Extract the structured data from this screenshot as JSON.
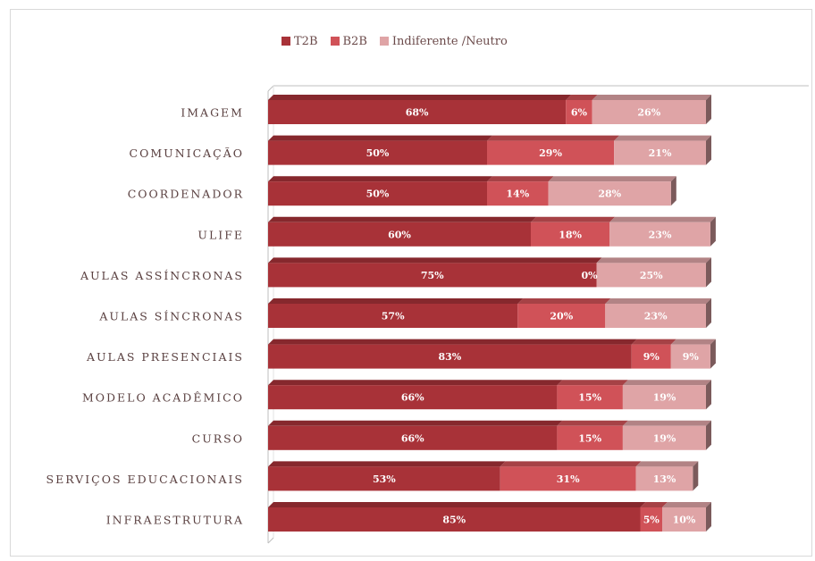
{
  "chart_data": {
    "type": "bar",
    "orientation": "horizontal",
    "stacked": true,
    "three_d": true,
    "categories": [
      "IMAGEM",
      "COMUNICAÇÃO",
      "COORDENADOR",
      "ULIFE",
      "AULAS ASSÍNCRONAS",
      "AULAS SÍNCRONAS",
      "AULAS PRESENCIAIS",
      "MODELO ACADÊMICO",
      "CURSO",
      "SERVIÇOS EDUCACIONAIS",
      "INFRAESTRUTURA"
    ],
    "series": [
      {
        "name": "T2B",
        "color": "#a83238",
        "values": [
          68,
          50,
          50,
          60,
          75,
          57,
          83,
          66,
          66,
          53,
          85
        ]
      },
      {
        "name": "B2B",
        "color": "#d05258",
        "values": [
          6,
          29,
          14,
          18,
          0,
          20,
          9,
          15,
          15,
          31,
          5
        ]
      },
      {
        "name": "Indiferente /Neutro",
        "color": "#dfa4a6",
        "values": [
          26,
          21,
          28,
          23,
          25,
          23,
          9,
          19,
          19,
          13,
          10
        ]
      }
    ],
    "data_labels": [
      [
        "68%",
        "6%",
        "26%"
      ],
      [
        "50%",
        "29%",
        "21%"
      ],
      [
        "50%",
        "14%",
        "28%"
      ],
      [
        "60%",
        "18%",
        "23%"
      ],
      [
        "75%",
        "0%",
        "25%"
      ],
      [
        "57%",
        "20%",
        "23%"
      ],
      [
        "83%",
        "9%",
        "9%"
      ],
      [
        "66%",
        "15%",
        "19%"
      ],
      [
        "66%",
        "15%",
        "19%"
      ],
      [
        "53%",
        "31%",
        "13%"
      ],
      [
        "85%",
        "5%",
        "10%"
      ]
    ],
    "title": "",
    "xlabel": "",
    "ylabel": "",
    "xlim": [
      0,
      100
    ],
    "grid": false,
    "legend_position": "top"
  }
}
